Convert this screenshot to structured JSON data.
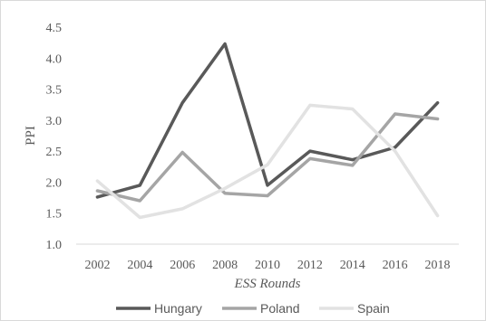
{
  "chart_data": {
    "type": "line",
    "title": "",
    "xlabel": "ESS Rounds",
    "ylabel": "PPI",
    "x": [
      "2002",
      "2004",
      "2006",
      "2008",
      "2010",
      "2012",
      "2014",
      "2016",
      "2018"
    ],
    "ylim": [
      1.0,
      4.5
    ],
    "yticks": [
      "1.0",
      "1.5",
      "2.0",
      "2.5",
      "3.0",
      "3.5",
      "4.0",
      "4.5"
    ],
    "grid": false,
    "legend": "bottom",
    "series": [
      {
        "name": "Hungary",
        "color": "#595959",
        "values": [
          1.76,
          1.95,
          3.28,
          4.23,
          1.95,
          2.5,
          2.36,
          2.56,
          3.28
        ]
      },
      {
        "name": "Poland",
        "color": "#a5a5a5",
        "values": [
          1.86,
          1.7,
          2.48,
          1.82,
          1.78,
          2.38,
          2.27,
          3.1,
          3.02
        ]
      },
      {
        "name": "Spain",
        "color": "#e2e2e2",
        "values": [
          2.02,
          1.43,
          1.57,
          1.9,
          2.28,
          3.24,
          3.18,
          2.5,
          1.46
        ]
      }
    ]
  }
}
